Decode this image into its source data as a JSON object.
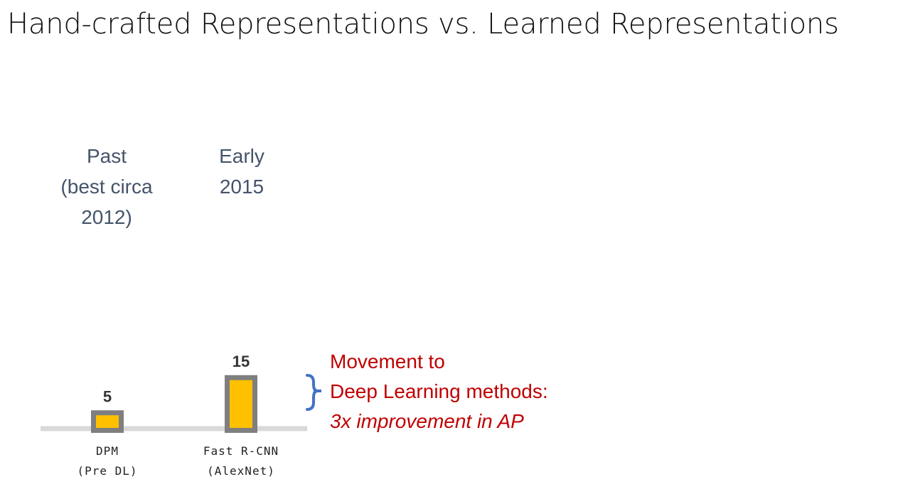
{
  "title": "Hand-crafted Representations vs. Learned Representations",
  "eras": [
    {
      "lines": [
        "Past",
        "(best circa",
        "2012)"
      ]
    },
    {
      "lines": [
        "Early",
        "2015"
      ]
    }
  ],
  "annotation": {
    "line1": "Movement to",
    "line2": "Deep Learning methods:",
    "line3": "3x improvement in AP"
  },
  "colors": {
    "bar_fill": "#ffc000",
    "bar_border": "#7f7f7f",
    "baseline": "#d9d9d9",
    "bracket": "#4472c4",
    "annotation_text": "#c00000",
    "era_text": "#44546a"
  },
  "chart_data": {
    "type": "bar",
    "categories": [
      [
        "DPM",
        "(Pre DL)"
      ],
      [
        "Fast R-CNN",
        "(AlexNet)"
      ]
    ],
    "values": [
      5,
      15
    ],
    "title": "",
    "xlabel": "",
    "ylabel": "",
    "grid": false
  }
}
